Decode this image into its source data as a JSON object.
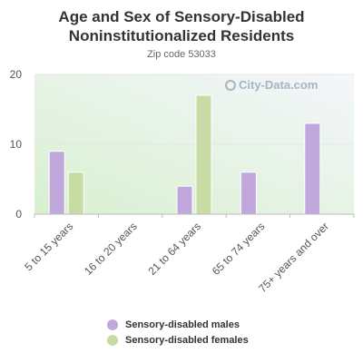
{
  "chart_data": {
    "type": "bar",
    "title": "Age and Sex of Sensory-Disabled\nNoninstitutionalized Residents",
    "subtitle": "Zip code 53033",
    "categories": [
      "5 to 15 years",
      "16 to 20 years",
      "21 to 64 years",
      "65 to 74 years",
      "75+ years and over"
    ],
    "series": [
      {
        "name": "Sensory-disabled males",
        "values": [
          9,
          0,
          4,
          6,
          13
        ],
        "color": "#c0a8dc"
      },
      {
        "name": "Sensory-disabled females",
        "values": [
          6,
          0,
          17,
          0,
          0
        ],
        "color": "#c8dba4"
      }
    ],
    "yticks": [
      0,
      10,
      20
    ],
    "ylim": [
      0,
      20
    ],
    "legend_position": "bottom",
    "grid": true
  },
  "watermark": "City-Data.com"
}
